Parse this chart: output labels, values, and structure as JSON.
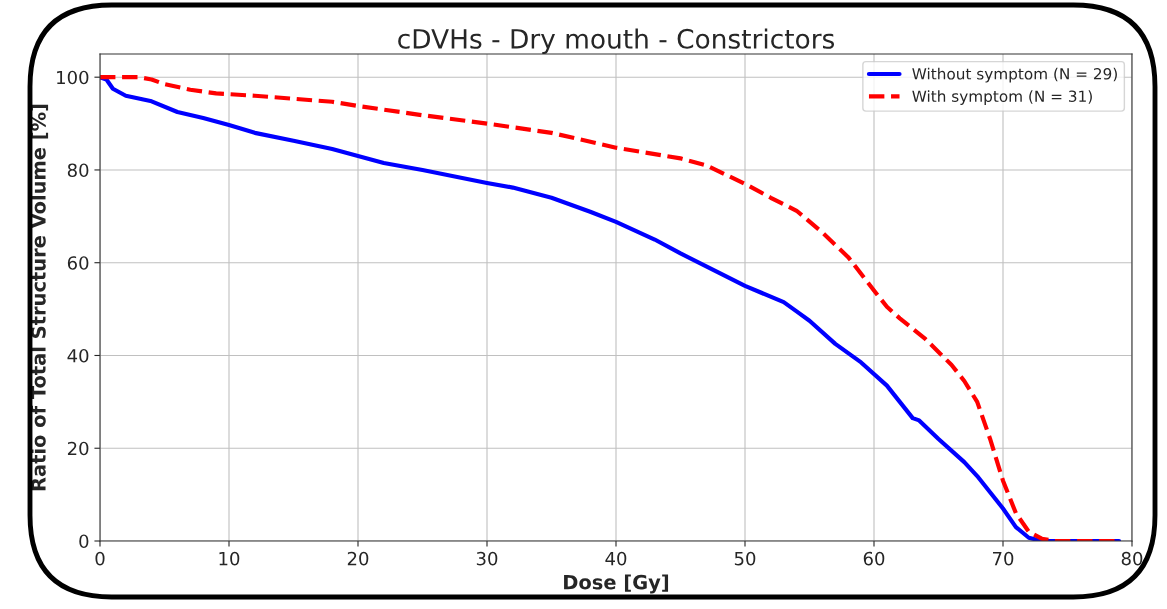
{
  "chart_data": {
    "type": "line",
    "title": "cDVHs - Dry mouth - Constrictors",
    "xlabel": "Dose [Gy]",
    "ylabel": "Ratio of Total Structure Volume [%]",
    "xlim": [
      0,
      80
    ],
    "xticks": [
      0,
      10,
      20,
      30,
      40,
      50,
      60,
      70,
      80
    ],
    "ylim": [
      0,
      105
    ],
    "yticks": [
      0,
      20,
      40,
      60,
      80,
      100
    ],
    "grid": true,
    "legend": "top right",
    "series": [
      {
        "name": "Without symptom (N = 29)",
        "color": "#0000ff",
        "line_style": "solid",
        "x": [
          0,
          0.5,
          1,
          2,
          4,
          6,
          8,
          10,
          12,
          15,
          18,
          20,
          22,
          25,
          30,
          32,
          35,
          38,
          40,
          43,
          45,
          48,
          50,
          53,
          54,
          55,
          57,
          59,
          61,
          62,
          63,
          63.5,
          65,
          67,
          68,
          69,
          70,
          71,
          72,
          73,
          79
        ],
        "values": [
          100,
          99.5,
          97.5,
          96,
          94.8,
          92.5,
          91.2,
          89.7,
          88,
          86.3,
          84.5,
          83,
          81.5,
          80,
          77.2,
          76.2,
          74,
          71,
          68.8,
          65,
          62,
          57.8,
          55,
          51.5,
          49.5,
          47.5,
          42.5,
          38.5,
          33.5,
          30,
          26.5,
          26,
          22,
          17,
          14,
          10.5,
          7,
          3,
          0.7,
          0,
          0
        ]
      },
      {
        "name": "With symptom (N = 31)",
        "color": "#ff0000",
        "line_style": "dashed",
        "x": [
          0,
          3,
          4,
          5,
          7,
          9,
          12,
          18,
          20,
          25,
          30,
          35,
          40,
          45,
          47,
          50,
          52,
          54,
          56,
          58,
          60,
          61,
          62,
          64,
          66,
          67,
          68,
          69,
          70,
          71,
          72,
          73,
          74,
          79
        ],
        "values": [
          100,
          100,
          99.5,
          98.5,
          97.3,
          96.5,
          96,
          94.7,
          93.8,
          91.8,
          90,
          88,
          84.8,
          82.5,
          81,
          77,
          74,
          71.2,
          66.5,
          61.2,
          54,
          50.5,
          48,
          43.5,
          38,
          34.5,
          30,
          22,
          13,
          6,
          2,
          0.5,
          0,
          0
        ]
      }
    ]
  }
}
